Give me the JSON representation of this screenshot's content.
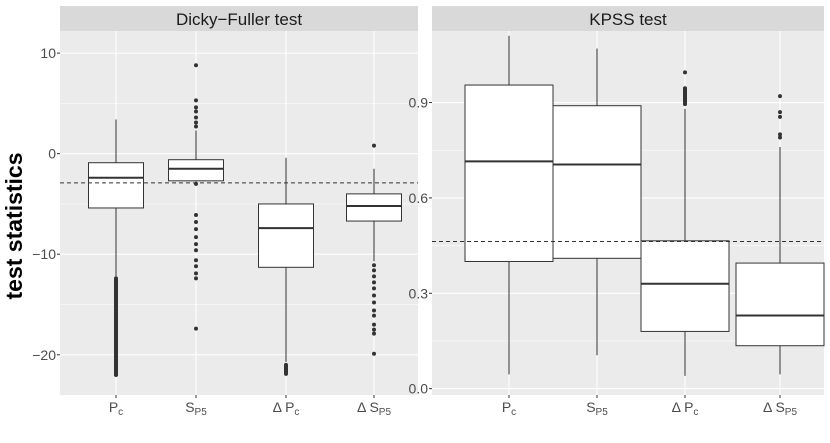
{
  "colors": {
    "panel_bg": "#ebebeb",
    "strip_bg": "#d9d9d9",
    "grid_major": "#ffffff",
    "box_fill": "#ffffff",
    "box_line": "#333333",
    "outlier": "#333333",
    "ref_line": "#333333"
  },
  "chart_data": {
    "type": "boxplot",
    "ylabel": "test statistics",
    "panels": [
      {
        "title": "Dicky−Fuller test",
        "ylim": [
          -24,
          12.2
        ],
        "yticks": [
          -20,
          -10,
          0,
          10
        ],
        "ytick_labels": [
          "−20",
          "−10",
          "0",
          "10"
        ],
        "reference_line": -2.9,
        "categories": [
          {
            "delta": "",
            "main": "P",
            "sub": "c"
          },
          {
            "delta": "",
            "main": "S",
            "sub": "P5"
          },
          {
            "delta": "Δ ",
            "main": "P",
            "sub": "c"
          },
          {
            "delta": "Δ ",
            "main": "S",
            "sub": "P5"
          }
        ],
        "boxes": [
          {
            "whisker_low": -12.2,
            "q1": -5.4,
            "median": -2.4,
            "q3": -0.9,
            "whisker_high": 3.4,
            "outliers": [
              -12.6,
              -13.4,
              -14.2,
              -15.0,
              -15.8,
              -16.6,
              -17.4,
              -18.2,
              -19.0,
              -19.8,
              -20.6,
              -21.4,
              -22.0
            ]
          },
          {
            "whisker_low": -2.8,
            "q1": -2.7,
            "median": -1.5,
            "q3": -0.6,
            "whisker_high": 2.3,
            "outliers": [
              8.8,
              5.3,
              4.6,
              4.2,
              3.6,
              3.1,
              2.7,
              -3.0,
              -6.1,
              -6.8,
              -7.5,
              -8.3,
              -9.0,
              -9.6,
              -10.6,
              -11.2,
              -11.9,
              -12.4,
              -17.4
            ]
          },
          {
            "whisker_low": -20.7,
            "q1": -11.3,
            "median": -7.4,
            "q3": -5.0,
            "whisker_high": -0.4,
            "outliers": [
              -21.0,
              -21.3,
              -21.6,
              -21.9
            ]
          },
          {
            "whisker_low": -10.7,
            "q1": -6.7,
            "median": -5.2,
            "q3": -4.0,
            "whisker_high": -1.5,
            "outliers": [
              0.8,
              -11.1,
              -11.6,
              -12.2,
              -12.8,
              -13.4,
              -14.1,
              -14.8,
              -15.6,
              -16.1,
              -17.0,
              -17.5,
              -17.9,
              -19.9
            ]
          }
        ]
      },
      {
        "title": "KPSS test",
        "ylim": [
          -0.02,
          1.125
        ],
        "yticks": [
          0.0,
          0.3,
          0.6,
          0.9
        ],
        "ytick_labels": [
          "0.0",
          "0.3",
          "0.6",
          "0.9"
        ],
        "reference_line": 0.463,
        "categories": [
          {
            "delta": "",
            "main": "P",
            "sub": "c"
          },
          {
            "delta": "",
            "main": "S",
            "sub": "P5"
          },
          {
            "delta": "Δ ",
            "main": "P",
            "sub": "c"
          },
          {
            "delta": "Δ ",
            "main": "S",
            "sub": "P5"
          }
        ],
        "boxes": [
          {
            "whisker_low": 0.045,
            "q1": 0.4,
            "median": 0.715,
            "q3": 0.955,
            "whisker_high": 1.11,
            "outliers": []
          },
          {
            "whisker_low": 0.105,
            "q1": 0.41,
            "median": 0.705,
            "q3": 0.89,
            "whisker_high": 1.07,
            "outliers": []
          },
          {
            "whisker_low": 0.04,
            "q1": 0.18,
            "median": 0.33,
            "q3": 0.465,
            "whisker_high": 0.88,
            "outliers": [
              0.995,
              0.945,
              0.94,
              0.935,
              0.93,
              0.925,
              0.92,
              0.915,
              0.91,
              0.905,
              0.9,
              0.895
            ]
          },
          {
            "whisker_low": 0.045,
            "q1": 0.135,
            "median": 0.23,
            "q3": 0.395,
            "whisker_high": 0.76,
            "outliers": [
              0.92,
              0.87,
              0.855,
              0.8,
              0.79
            ]
          }
        ]
      }
    ]
  }
}
